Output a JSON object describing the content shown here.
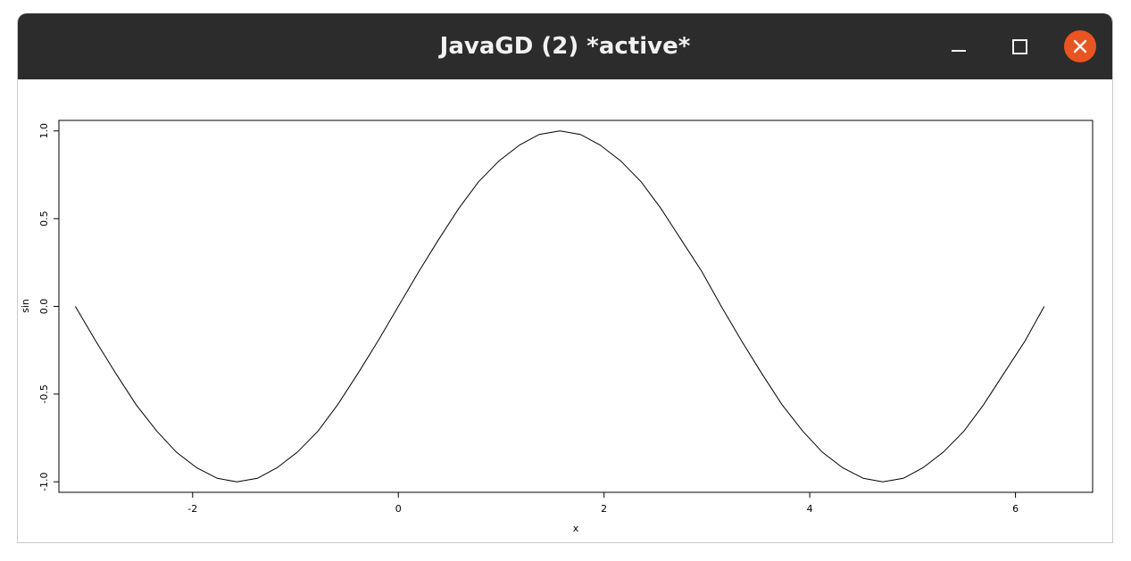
{
  "window": {
    "title": "JavaGD (2) *active*",
    "controls": {
      "minimize": "minimize-icon",
      "maximize": "maximize-icon",
      "close": "close-icon"
    },
    "colors": {
      "titlebar": "#2c2c2c",
      "close": "#e95420",
      "title_text": "#f2f2f2"
    }
  },
  "chart_data": {
    "type": "line",
    "xlabel": "x",
    "ylabel": "sin",
    "xlim": [
      -3.3,
      6.75
    ],
    "ylim": [
      -1.06,
      1.06
    ],
    "x_ticks": [
      -2,
      0,
      2,
      4,
      6
    ],
    "x_tick_labels": [
      "-2",
      "0",
      "2",
      "4",
      "6"
    ],
    "y_ticks": [
      -1.0,
      -0.5,
      0.0,
      0.5,
      1.0
    ],
    "y_tick_labels": [
      "-1.0",
      "-0.5",
      "0.0",
      "0.5",
      "1.0"
    ],
    "grid": false,
    "series": [
      {
        "color": "#000000",
        "x": [
          -3.14,
          -2.94,
          -2.75,
          -2.55,
          -2.35,
          -2.16,
          -1.96,
          -1.76,
          -1.57,
          -1.37,
          -1.18,
          -0.98,
          -0.78,
          -0.59,
          -0.39,
          -0.2,
          0.0,
          0.2,
          0.39,
          0.59,
          0.78,
          0.98,
          1.18,
          1.37,
          1.57,
          1.77,
          1.96,
          2.16,
          2.36,
          2.55,
          2.75,
          2.95,
          3.14,
          3.34,
          3.53,
          3.73,
          3.93,
          4.12,
          4.32,
          4.52,
          4.71,
          4.91,
          5.1,
          5.3,
          5.5,
          5.69,
          5.89,
          6.09,
          6.28
        ],
        "y": [
          0.0,
          -0.2,
          -0.38,
          -0.56,
          -0.71,
          -0.83,
          -0.92,
          -0.98,
          -1.0,
          -0.98,
          -0.92,
          -0.83,
          -0.71,
          -0.56,
          -0.38,
          -0.2,
          0.0,
          0.2,
          0.38,
          0.56,
          0.71,
          0.83,
          0.92,
          0.98,
          1.0,
          0.98,
          0.92,
          0.83,
          0.71,
          0.56,
          0.38,
          0.2,
          0.0,
          -0.2,
          -0.38,
          -0.56,
          -0.71,
          -0.83,
          -0.92,
          -0.98,
          -1.0,
          -0.98,
          -0.92,
          -0.83,
          -0.71,
          -0.56,
          -0.38,
          -0.2,
          0.0
        ]
      }
    ]
  }
}
